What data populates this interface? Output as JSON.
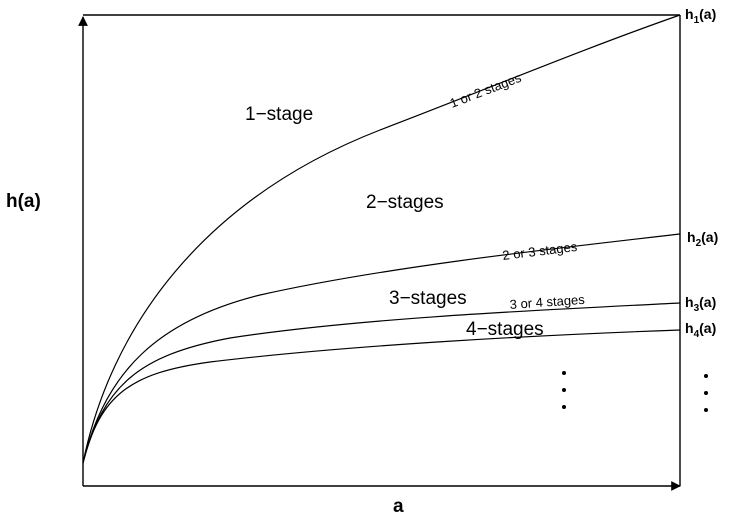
{
  "axes": {
    "y_label": "h(a)",
    "x_label": "a"
  },
  "curves": [
    {
      "id": "h1",
      "label_main": "h",
      "label_sub": "1",
      "label_tail": "(a)"
    },
    {
      "id": "h2",
      "label_main": "h",
      "label_sub": "2",
      "label_tail": "(a)"
    },
    {
      "id": "h3",
      "label_main": "h",
      "label_sub": "3",
      "label_tail": "(a)"
    },
    {
      "id": "h4",
      "label_main": "h",
      "label_sub": "4",
      "label_tail": "(a)"
    }
  ],
  "regions": [
    {
      "id": "region-1-stage",
      "text": "1−stage"
    },
    {
      "id": "region-2-stages",
      "text": "2−stages"
    },
    {
      "id": "region-3-stages",
      "text": "3−stages"
    },
    {
      "id": "region-4-stages",
      "text": "4−stages"
    }
  ],
  "boundary_labels": [
    {
      "id": "boundary-1-or-2",
      "text": "1 or 2 stages"
    },
    {
      "id": "boundary-2-or-3",
      "text": "2 or 3 stages"
    },
    {
      "id": "boundary-3-or-4",
      "text": "3 or 4 stages"
    }
  ],
  "ellipsis": "⋮"
}
